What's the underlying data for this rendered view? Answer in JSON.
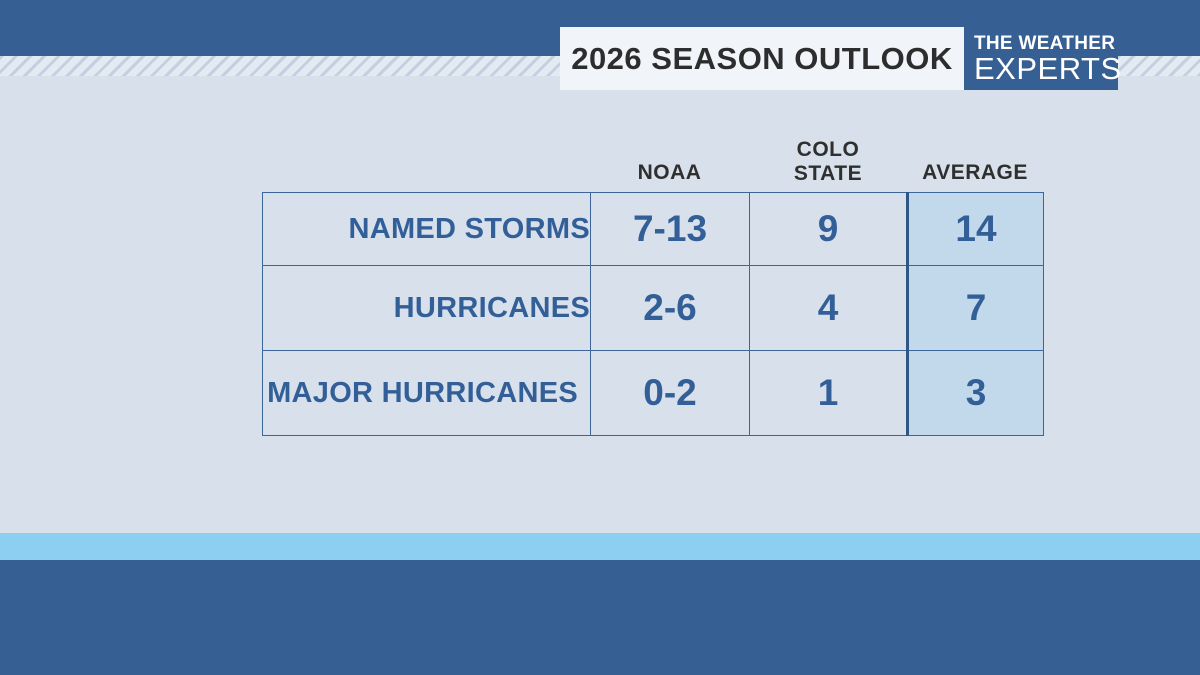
{
  "header": {
    "title": "2026 SEASON OUTLOOK",
    "logo_line1": "THE WEATHER",
    "logo_line2": "EXPERTS"
  },
  "table": {
    "columns": [
      "NOAA",
      "COLO",
      "STATE",
      "AVERAGE"
    ],
    "rows": [
      {
        "label": "NAMED STORMS",
        "noaa": "7-13",
        "colo_state": "9",
        "average": "14"
      },
      {
        "label": "HURRICANES",
        "noaa": "2-6",
        "colo_state": "4",
        "average": "7"
      },
      {
        "label": "MAJOR HURRICANES",
        "noaa": "0-2",
        "colo_state": "1",
        "average": "3"
      }
    ]
  },
  "colors": {
    "primary_blue": "#365f94",
    "text_blue": "#335f98",
    "average_highlight": "#c2d8eb",
    "accent_light_blue": "#8ccff1",
    "background": "#d8e1eb"
  }
}
